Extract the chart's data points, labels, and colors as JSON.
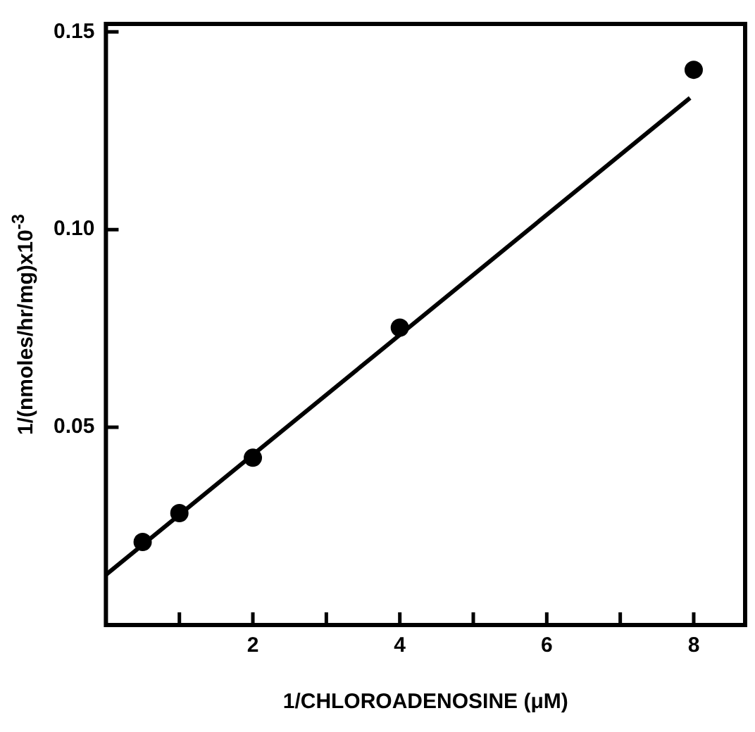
{
  "chart_data": {
    "type": "scatter",
    "xlabel": "1/CHLOROADENOSINE (μM)",
    "ylabel": "1/(nmoles/hr/mg)x10$^{-3}$",
    "xlim": [
      0,
      8.7
    ],
    "ylim": [
      0,
      0.152
    ],
    "xticks": [
      {
        "value": 1,
        "label": null
      },
      2,
      {
        "value": 3,
        "label": null
      },
      4,
      {
        "value": 5,
        "label": null
      },
      6,
      {
        "value": 7,
        "label": null
      },
      8
    ],
    "yticks": [
      {
        "value": 0.05,
        "label": "0.05"
      },
      {
        "value": 0.1,
        "label": "0.10"
      },
      {
        "value": 0.15,
        "label": "0.15"
      }
    ],
    "grid": false,
    "legend": false,
    "marker": "circle",
    "series": [
      {
        "color": "#000000",
        "x": [
          0.5,
          1,
          2,
          4,
          8
        ],
        "values": [
          0.021,
          0.0283,
          0.0423,
          0.0752,
          0.1404
        ]
      },
      {
        "type": "line",
        "color": "#000000",
        "marker": "none",
        "line_style": "solid",
        "x": [
          0,
          7.95
        ],
        "values": [
          0.0127,
          0.1333
        ]
      }
    ]
  }
}
